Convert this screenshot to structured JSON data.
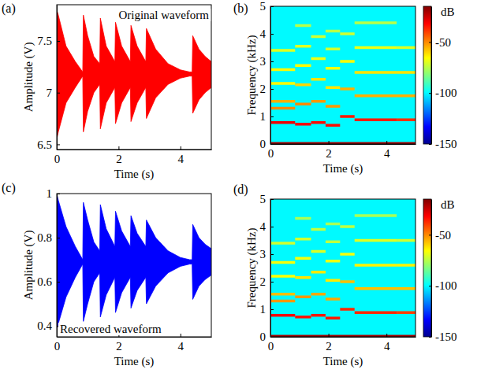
{
  "chart_data": [
    {
      "panel_label": "(a)",
      "type": "area",
      "annotation": "Original waveform",
      "xlabel": "Time (s)",
      "ylabel": "Amplitude (V)",
      "color": "#ff0000",
      "xlim": [
        0,
        5
      ],
      "xticks": [
        0,
        2,
        4
      ],
      "ylim": [
        6.45,
        7.85
      ],
      "yticks": [
        6.5,
        7,
        7.5
      ],
      "x": [
        0,
        0.05,
        0.3,
        0.6,
        0.84,
        0.86,
        1.0,
        1.2,
        1.39,
        1.41,
        1.6,
        1.88,
        1.9,
        2.1,
        2.38,
        2.4,
        2.6,
        2.88,
        2.9,
        3.2,
        3.6,
        4.0,
        4.3,
        4.38,
        4.4,
        4.6,
        4.8,
        5.0
      ],
      "series": [
        {
          "values": [
            7.8,
            7.75,
            7.45,
            7.3,
            7.2,
            7.75,
            7.55,
            7.35,
            7.28,
            7.72,
            7.45,
            7.3,
            7.68,
            7.45,
            7.3,
            7.65,
            7.45,
            7.3,
            7.62,
            7.42,
            7.28,
            7.22,
            7.2,
            7.2,
            7.55,
            7.42,
            7.35,
            7.3
          ]
        },
        {
          "values": [
            6.55,
            6.62,
            6.9,
            7.05,
            7.16,
            6.62,
            6.82,
            7.0,
            7.08,
            6.65,
            6.9,
            7.05,
            6.7,
            6.9,
            7.05,
            6.72,
            6.9,
            7.05,
            6.75,
            6.95,
            7.08,
            7.14,
            7.16,
            7.16,
            6.8,
            6.93,
            7.0,
            7.05
          ]
        }
      ]
    },
    {
      "panel_label": "(b)",
      "type": "heatmap",
      "xlabel": "Time (s)",
      "ylabel": "Frequency (kHz)",
      "xlim": [
        0,
        5
      ],
      "xticks": [
        0,
        2,
        4
      ],
      "ylim": [
        0,
        5
      ],
      "yticks": [
        0,
        1,
        2,
        3,
        4,
        5
      ],
      "background_db": -100,
      "colorbar": {
        "range": [
          -150,
          -15
        ],
        "ticks": [
          -150,
          -100,
          -50
        ],
        "label": "dB"
      },
      "bands": [
        {
          "t0": 0,
          "t1": 5,
          "f": 0.02,
          "db": -20
        },
        {
          "t0": 0,
          "t1": 0.85,
          "f": 0.78,
          "db": -30
        },
        {
          "t0": 0,
          "t1": 0.85,
          "f": 1.3,
          "db": -50
        },
        {
          "t0": 0,
          "t1": 0.85,
          "f": 1.55,
          "db": -55
        },
        {
          "t0": 0,
          "t1": 0.85,
          "f": 2.2,
          "db": -65
        },
        {
          "t0": 0,
          "t1": 0.85,
          "f": 2.7,
          "db": -65
        },
        {
          "t0": 0,
          "t1": 0.85,
          "f": 3.4,
          "db": -70
        },
        {
          "t0": 0.85,
          "t1": 1.4,
          "f": 0.72,
          "db": -32
        },
        {
          "t0": 0.85,
          "t1": 1.4,
          "f": 1.45,
          "db": -50
        },
        {
          "t0": 0.85,
          "t1": 1.4,
          "f": 2.15,
          "db": -60
        },
        {
          "t0": 0.85,
          "t1": 1.4,
          "f": 2.85,
          "db": -65
        },
        {
          "t0": 0.85,
          "t1": 1.4,
          "f": 3.55,
          "db": -70
        },
        {
          "t0": 0.85,
          "t1": 1.4,
          "f": 4.3,
          "db": -75
        },
        {
          "t0": 1.4,
          "t1": 1.9,
          "f": 0.78,
          "db": -33
        },
        {
          "t0": 1.4,
          "t1": 1.9,
          "f": 1.55,
          "db": -52
        },
        {
          "t0": 1.4,
          "t1": 1.9,
          "f": 2.35,
          "db": -62
        },
        {
          "t0": 1.4,
          "t1": 1.9,
          "f": 3.1,
          "db": -68
        },
        {
          "t0": 1.4,
          "t1": 1.9,
          "f": 3.9,
          "db": -72
        },
        {
          "t0": 1.9,
          "t1": 2.4,
          "f": 0.68,
          "db": -33
        },
        {
          "t0": 1.9,
          "t1": 2.4,
          "f": 1.37,
          "db": -52
        },
        {
          "t0": 1.9,
          "t1": 2.4,
          "f": 2.05,
          "db": -62
        },
        {
          "t0": 1.9,
          "t1": 2.4,
          "f": 2.75,
          "db": -66
        },
        {
          "t0": 1.9,
          "t1": 2.4,
          "f": 3.45,
          "db": -72
        },
        {
          "t0": 1.9,
          "t1": 2.4,
          "f": 4.1,
          "db": -75
        },
        {
          "t0": 2.4,
          "t1": 2.9,
          "f": 1.0,
          "db": -35
        },
        {
          "t0": 2.4,
          "t1": 2.9,
          "f": 2.0,
          "db": -55
        },
        {
          "t0": 2.4,
          "t1": 2.9,
          "f": 3.0,
          "db": -65
        },
        {
          "t0": 2.4,
          "t1": 2.9,
          "f": 4.0,
          "db": -72
        },
        {
          "t0": 2.9,
          "t1": 4.35,
          "f": 0.88,
          "db": -35
        },
        {
          "t0": 2.9,
          "t1": 4.35,
          "f": 1.75,
          "db": -55
        },
        {
          "t0": 2.9,
          "t1": 4.35,
          "f": 2.6,
          "db": -62
        },
        {
          "t0": 2.9,
          "t1": 4.35,
          "f": 3.5,
          "db": -68
        },
        {
          "t0": 2.9,
          "t1": 4.35,
          "f": 4.4,
          "db": -75
        },
        {
          "t0": 4.35,
          "t1": 5,
          "f": 0.88,
          "db": -38
        },
        {
          "t0": 4.35,
          "t1": 5,
          "f": 1.75,
          "db": -55
        },
        {
          "t0": 4.35,
          "t1": 5,
          "f": 2.6,
          "db": -62
        },
        {
          "t0": 4.35,
          "t1": 5,
          "f": 3.5,
          "db": -70
        }
      ]
    },
    {
      "panel_label": "(c)",
      "type": "area",
      "annotation": "Recovered waveform",
      "xlabel": "Time (s)",
      "ylabel": "Amplitude (V)",
      "color": "#0000ff",
      "xlim": [
        0,
        5
      ],
      "xticks": [
        0,
        2,
        4
      ],
      "ylim": [
        0.35,
        1.0
      ],
      "yticks": [
        0.4,
        0.6,
        0.8,
        1
      ],
      "x": [
        0,
        0.05,
        0.3,
        0.6,
        0.84,
        0.86,
        1.0,
        1.2,
        1.39,
        1.41,
        1.6,
        1.88,
        1.9,
        2.1,
        2.38,
        2.4,
        2.6,
        2.88,
        2.9,
        3.2,
        3.6,
        4.0,
        4.3,
        4.38,
        4.4,
        4.6,
        4.8,
        5.0
      ],
      "series": [
        {
          "values": [
            1.0,
            0.97,
            0.85,
            0.76,
            0.7,
            0.96,
            0.88,
            0.78,
            0.74,
            0.95,
            0.84,
            0.76,
            0.92,
            0.83,
            0.76,
            0.9,
            0.82,
            0.76,
            0.88,
            0.8,
            0.74,
            0.71,
            0.7,
            0.7,
            0.86,
            0.8,
            0.77,
            0.75
          ]
        },
        {
          "values": [
            0.38,
            0.41,
            0.53,
            0.62,
            0.68,
            0.42,
            0.5,
            0.6,
            0.64,
            0.44,
            0.54,
            0.62,
            0.46,
            0.55,
            0.62,
            0.48,
            0.56,
            0.62,
            0.5,
            0.58,
            0.64,
            0.67,
            0.68,
            0.68,
            0.52,
            0.58,
            0.61,
            0.63
          ]
        }
      ]
    },
    {
      "panel_label": "(d)",
      "type": "heatmap",
      "xlabel": "Time (s)",
      "ylabel": "Frequency (kHz)",
      "xlim": [
        0,
        5
      ],
      "xticks": [
        0,
        2,
        4
      ],
      "ylim": [
        0,
        5
      ],
      "yticks": [
        0,
        1,
        2,
        3,
        4,
        5
      ],
      "background_db": -100,
      "colorbar": {
        "range": [
          -150,
          -15
        ],
        "ticks": [
          -150,
          -100,
          -50
        ],
        "label": "dB"
      },
      "bands": [
        {
          "t0": 0,
          "t1": 5,
          "f": 0.02,
          "db": -20
        },
        {
          "t0": 0,
          "t1": 0.85,
          "f": 0.78,
          "db": -32
        },
        {
          "t0": 0,
          "t1": 0.85,
          "f": 1.3,
          "db": -52
        },
        {
          "t0": 0,
          "t1": 0.85,
          "f": 1.55,
          "db": -57
        },
        {
          "t0": 0,
          "t1": 0.85,
          "f": 2.2,
          "db": -66
        },
        {
          "t0": 0,
          "t1": 0.85,
          "f": 2.7,
          "db": -67
        },
        {
          "t0": 0,
          "t1": 0.85,
          "f": 3.4,
          "db": -72
        },
        {
          "t0": 0.85,
          "t1": 1.4,
          "f": 0.72,
          "db": -34
        },
        {
          "t0": 0.85,
          "t1": 1.4,
          "f": 1.45,
          "db": -52
        },
        {
          "t0": 0.85,
          "t1": 1.4,
          "f": 2.15,
          "db": -62
        },
        {
          "t0": 0.85,
          "t1": 1.4,
          "f": 2.85,
          "db": -67
        },
        {
          "t0": 0.85,
          "t1": 1.4,
          "f": 3.55,
          "db": -72
        },
        {
          "t0": 0.85,
          "t1": 1.4,
          "f": 4.3,
          "db": -77
        },
        {
          "t0": 1.4,
          "t1": 1.9,
          "f": 0.78,
          "db": -35
        },
        {
          "t0": 1.4,
          "t1": 1.9,
          "f": 1.55,
          "db": -54
        },
        {
          "t0": 1.4,
          "t1": 1.9,
          "f": 2.35,
          "db": -63
        },
        {
          "t0": 1.4,
          "t1": 1.9,
          "f": 3.1,
          "db": -70
        },
        {
          "t0": 1.4,
          "t1": 1.9,
          "f": 3.9,
          "db": -74
        },
        {
          "t0": 1.9,
          "t1": 2.4,
          "f": 0.68,
          "db": -35
        },
        {
          "t0": 1.9,
          "t1": 2.4,
          "f": 1.37,
          "db": -54
        },
        {
          "t0": 1.9,
          "t1": 2.4,
          "f": 2.05,
          "db": -63
        },
        {
          "t0": 1.9,
          "t1": 2.4,
          "f": 2.75,
          "db": -68
        },
        {
          "t0": 1.9,
          "t1": 2.4,
          "f": 3.45,
          "db": -74
        },
        {
          "t0": 1.9,
          "t1": 2.4,
          "f": 4.1,
          "db": -77
        },
        {
          "t0": 2.4,
          "t1": 2.9,
          "f": 1.0,
          "db": -37
        },
        {
          "t0": 2.4,
          "t1": 2.9,
          "f": 2.0,
          "db": -57
        },
        {
          "t0": 2.4,
          "t1": 2.9,
          "f": 3.0,
          "db": -67
        },
        {
          "t0": 2.4,
          "t1": 2.9,
          "f": 4.0,
          "db": -74
        },
        {
          "t0": 2.9,
          "t1": 4.35,
          "f": 0.88,
          "db": -37
        },
        {
          "t0": 2.9,
          "t1": 4.35,
          "f": 1.75,
          "db": -57
        },
        {
          "t0": 2.9,
          "t1": 4.35,
          "f": 2.6,
          "db": -64
        },
        {
          "t0": 2.9,
          "t1": 4.35,
          "f": 3.5,
          "db": -70
        },
        {
          "t0": 2.9,
          "t1": 4.35,
          "f": 4.4,
          "db": -77
        },
        {
          "t0": 4.35,
          "t1": 5,
          "f": 0.88,
          "db": -40
        },
        {
          "t0": 4.35,
          "t1": 5,
          "f": 1.75,
          "db": -57
        },
        {
          "t0": 4.35,
          "t1": 5,
          "f": 2.6,
          "db": -64
        },
        {
          "t0": 4.35,
          "t1": 5,
          "f": 3.5,
          "db": -72
        }
      ]
    }
  ]
}
